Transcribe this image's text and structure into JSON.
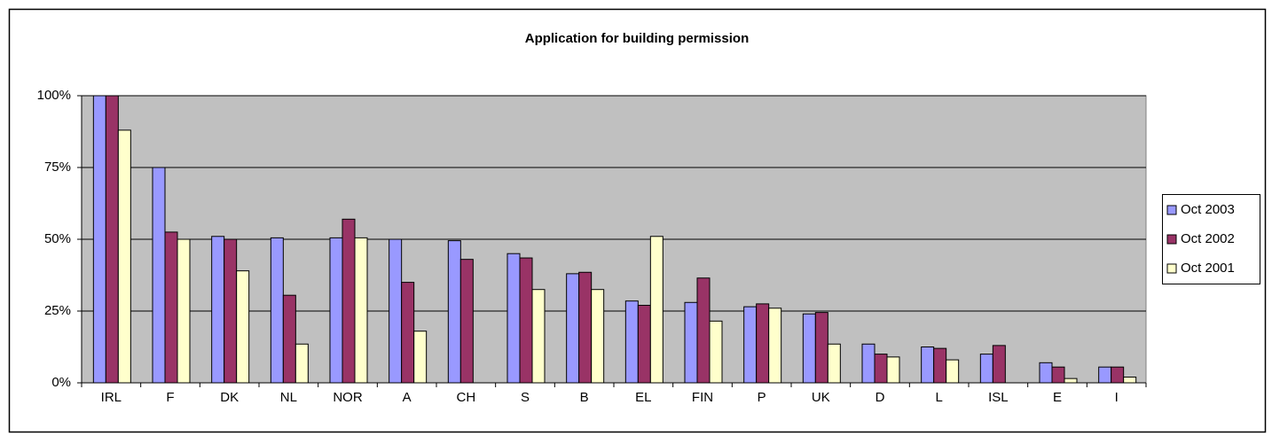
{
  "chart_data": {
    "type": "bar",
    "title": "Application for building permission",
    "categories": [
      "IRL",
      "F",
      "DK",
      "NL",
      "NOR",
      "A",
      "CH",
      "S",
      "B",
      "EL",
      "FIN",
      "P",
      "UK",
      "D",
      "L",
      "ISL",
      "E",
      "I"
    ],
    "series": [
      {
        "name": "Oct 2003",
        "color": "#9999ff",
        "values": [
          100,
          75,
          51,
          50.5,
          50.5,
          50,
          49.5,
          45,
          38,
          28.5,
          28,
          26.5,
          24,
          13.5,
          12.5,
          10,
          7,
          5.5
        ]
      },
      {
        "name": "Oct 2002",
        "color": "#993366",
        "values": [
          100,
          52.5,
          50,
          30.5,
          57,
          35,
          43,
          43.5,
          38.5,
          27,
          36.5,
          27.5,
          24.5,
          10,
          12,
          13,
          5.5,
          5.5
        ]
      },
      {
        "name": "Oct 2001",
        "color": "#ffffcc",
        "values": [
          88,
          50,
          39,
          13.5,
          50.5,
          18,
          null,
          32.5,
          32.5,
          51,
          21.5,
          26,
          13.5,
          9,
          8,
          null,
          1.5,
          2
        ]
      }
    ],
    "ylim": [
      0,
      100
    ],
    "yticks": [
      {
        "value": 0,
        "label": "0%"
      },
      {
        "value": 25,
        "label": "25%"
      },
      {
        "value": 50,
        "label": "50%"
      },
      {
        "value": 75,
        "label": "75%"
      },
      {
        "value": 100,
        "label": "100%"
      }
    ],
    "grid": true,
    "legend": "right"
  }
}
